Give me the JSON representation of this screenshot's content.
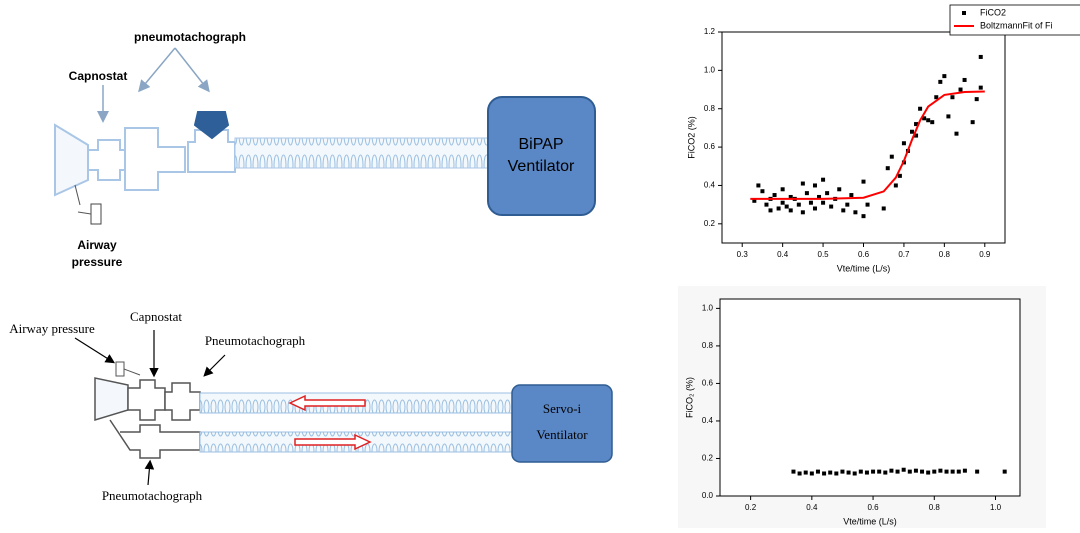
{
  "top_diagram": {
    "pneumotachograph": "pneumotachograph",
    "capnostat": "Capnostat",
    "airway_pressure": [
      "Airway",
      "pressure"
    ],
    "ventilator": [
      "BiPAP",
      "Ventilator"
    ]
  },
  "bottom_diagram": {
    "airway_pressure": "Airway pressure",
    "capnostat": "Capnostat",
    "pneumotachograph_top": "Pneumotachograph",
    "pneumotachograph_bottom": "Pneumotachograph",
    "ventilator": [
      "Servo-i",
      "Ventilator"
    ]
  },
  "chart_data": [
    {
      "type": "scatter",
      "x_label": "Vte/time (L/s)",
      "y_label": "FiCO2 (%)",
      "xlim": [
        0.25,
        0.95
      ],
      "ylim": [
        0.1,
        1.2
      ],
      "xticks": [
        0.3,
        0.4,
        0.5,
        0.6,
        0.7,
        0.8,
        0.9
      ],
      "yticks": [
        0.2,
        0.4,
        0.6,
        0.8,
        {
          "value": 1,
          "label": "1.0"
        },
        1.2
      ],
      "legend": "top-right",
      "series": [
        {
          "name": "FiCO2",
          "color": "#000000",
          "style": "markers",
          "x": [
            0.33,
            0.34,
            0.35,
            0.36,
            0.37,
            0.37,
            0.38,
            0.39,
            0.4,
            0.4,
            0.41,
            0.42,
            0.42,
            0.43,
            0.44,
            0.45,
            0.45,
            0.46,
            0.47,
            0.48,
            0.48,
            0.49,
            0.5,
            0.5,
            0.51,
            0.52,
            0.53,
            0.54,
            0.55,
            0.56,
            0.57,
            0.58,
            0.6,
            0.6,
            0.61,
            0.65,
            0.66,
            0.67,
            0.68,
            0.69,
            0.7,
            0.7,
            0.71,
            0.72,
            0.73,
            0.73,
            0.74,
            0.75,
            0.76,
            0.77,
            0.78,
            0.79,
            0.8,
            0.81,
            0.82,
            0.83,
            0.84,
            0.85,
            0.87,
            0.88,
            0.89,
            0.89
          ],
          "values": [
            0.32,
            0.4,
            0.37,
            0.3,
            0.33,
            0.27,
            0.35,
            0.28,
            0.38,
            0.31,
            0.29,
            0.34,
            0.27,
            0.33,
            0.3,
            0.41,
            0.26,
            0.36,
            0.31,
            0.4,
            0.28,
            0.34,
            0.31,
            0.43,
            0.36,
            0.29,
            0.33,
            0.38,
            0.27,
            0.3,
            0.35,
            0.26,
            0.42,
            0.24,
            0.3,
            0.28,
            0.49,
            0.55,
            0.4,
            0.45,
            0.52,
            0.62,
            0.58,
            0.68,
            0.72,
            0.66,
            0.8,
            0.75,
            0.74,
            0.73,
            0.86,
            0.94,
            0.97,
            0.76,
            0.86,
            0.67,
            0.9,
            0.95,
            0.73,
            0.85,
            1.07,
            0.91
          ]
        },
        {
          "name": "BoltzmannFit of Fi",
          "color": "#ff0000",
          "style": "line",
          "x": [
            0.32,
            0.4,
            0.5,
            0.6,
            0.65,
            0.68,
            0.7,
            0.72,
            0.74,
            0.76,
            0.8,
            0.85,
            0.9
          ],
          "values": [
            0.33,
            0.33,
            0.33,
            0.336,
            0.369,
            0.441,
            0.528,
            0.638,
            0.739,
            0.811,
            0.872,
            0.887,
            0.89
          ]
        }
      ]
    },
    {
      "type": "scatter",
      "x_label": "Vte/time (L/s)",
      "y_label": "FiCO₂ (%)",
      "xlim": [
        0.1,
        1.08
      ],
      "ylim": [
        0,
        1.05
      ],
      "xticks": [
        0.2,
        0.4,
        0.6,
        0.8,
        {
          "value": 1,
          "label": "1.0"
        }
      ],
      "yticks": [
        {
          "value": 0,
          "label": "0.0"
        },
        0.2,
        0.4,
        0.6,
        0.8,
        {
          "value": 1,
          "label": "1.0"
        }
      ],
      "series": [
        {
          "color": "#000000",
          "style": "markers",
          "x": [
            0.34,
            0.36,
            0.38,
            0.4,
            0.42,
            0.44,
            0.46,
            0.48,
            0.5,
            0.52,
            0.54,
            0.56,
            0.58,
            0.6,
            0.62,
            0.64,
            0.66,
            0.68,
            0.7,
            0.72,
            0.74,
            0.76,
            0.78,
            0.8,
            0.82,
            0.84,
            0.86,
            0.88,
            0.9,
            0.94,
            1.03
          ],
          "values": [
            0.13,
            0.12,
            0.125,
            0.12,
            0.13,
            0.12,
            0.125,
            0.12,
            0.13,
            0.125,
            0.12,
            0.13,
            0.125,
            0.13,
            0.13,
            0.125,
            0.135,
            0.13,
            0.14,
            0.13,
            0.135,
            0.13,
            0.125,
            0.13,
            0.135,
            0.13,
            0.13,
            0.13,
            0.135,
            0.13,
            0.13
          ]
        }
      ]
    }
  ]
}
